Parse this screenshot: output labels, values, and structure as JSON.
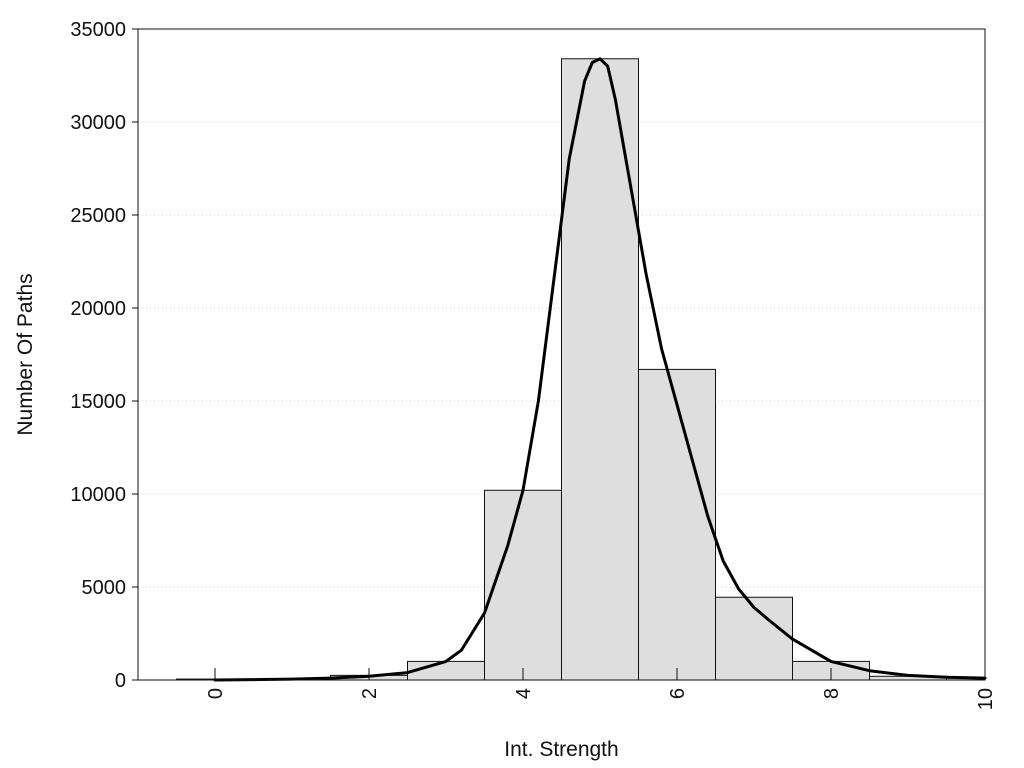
{
  "chart_data": {
    "type": "bar",
    "title": "",
    "xlabel": "Int. Strength",
    "ylabel": "Number Of Paths",
    "xlim": [
      -1,
      10
    ],
    "ylim": [
      0,
      35000
    ],
    "grid": true,
    "legend": "none",
    "x_ticks": [
      "0",
      "2",
      "4",
      "6",
      "8",
      "10"
    ],
    "y_ticks": [
      "0",
      "5000",
      "10000",
      "15000",
      "20000",
      "25000",
      "30000",
      "35000"
    ],
    "colors": {
      "bar_fill": "#dedede",
      "bar_stroke": "#111111",
      "curve": "#000000",
      "grid": "#c8c8c8"
    },
    "bins": [
      {
        "center": 0,
        "value": 50
      },
      {
        "center": 1,
        "value": 50
      },
      {
        "center": 2,
        "value": 250
      },
      {
        "center": 3,
        "value": 1000
      },
      {
        "center": 4,
        "value": 10200
      },
      {
        "center": 5,
        "value": 33400
      },
      {
        "center": 6,
        "value": 16700
      },
      {
        "center": 7,
        "value": 4450
      },
      {
        "center": 8,
        "value": 1000
      },
      {
        "center": 9,
        "value": 200
      },
      {
        "center": 10,
        "value": 120
      }
    ],
    "bin_width": 1,
    "fit_curve": {
      "x": [
        0,
        0.5,
        1,
        1.5,
        2,
        2.5,
        3,
        3.2,
        3.5,
        3.8,
        4,
        4.2,
        4.4,
        4.6,
        4.8,
        4.9,
        5,
        5.1,
        5.2,
        5.4,
        5.6,
        5.8,
        6,
        6.2,
        6.4,
        6.6,
        6.8,
        7,
        7.2,
        7.5,
        8,
        8.5,
        9,
        9.5,
        10
      ],
      "y": [
        0,
        20,
        50,
        100,
        200,
        400,
        1000,
        1600,
        3600,
        7200,
        10200,
        15000,
        21500,
        28000,
        32200,
        33200,
        33400,
        33000,
        31200,
        26500,
        21800,
        17800,
        14800,
        11800,
        8800,
        6400,
        4900,
        3900,
        3200,
        2200,
        1000,
        500,
        250,
        150,
        100
      ]
    }
  }
}
